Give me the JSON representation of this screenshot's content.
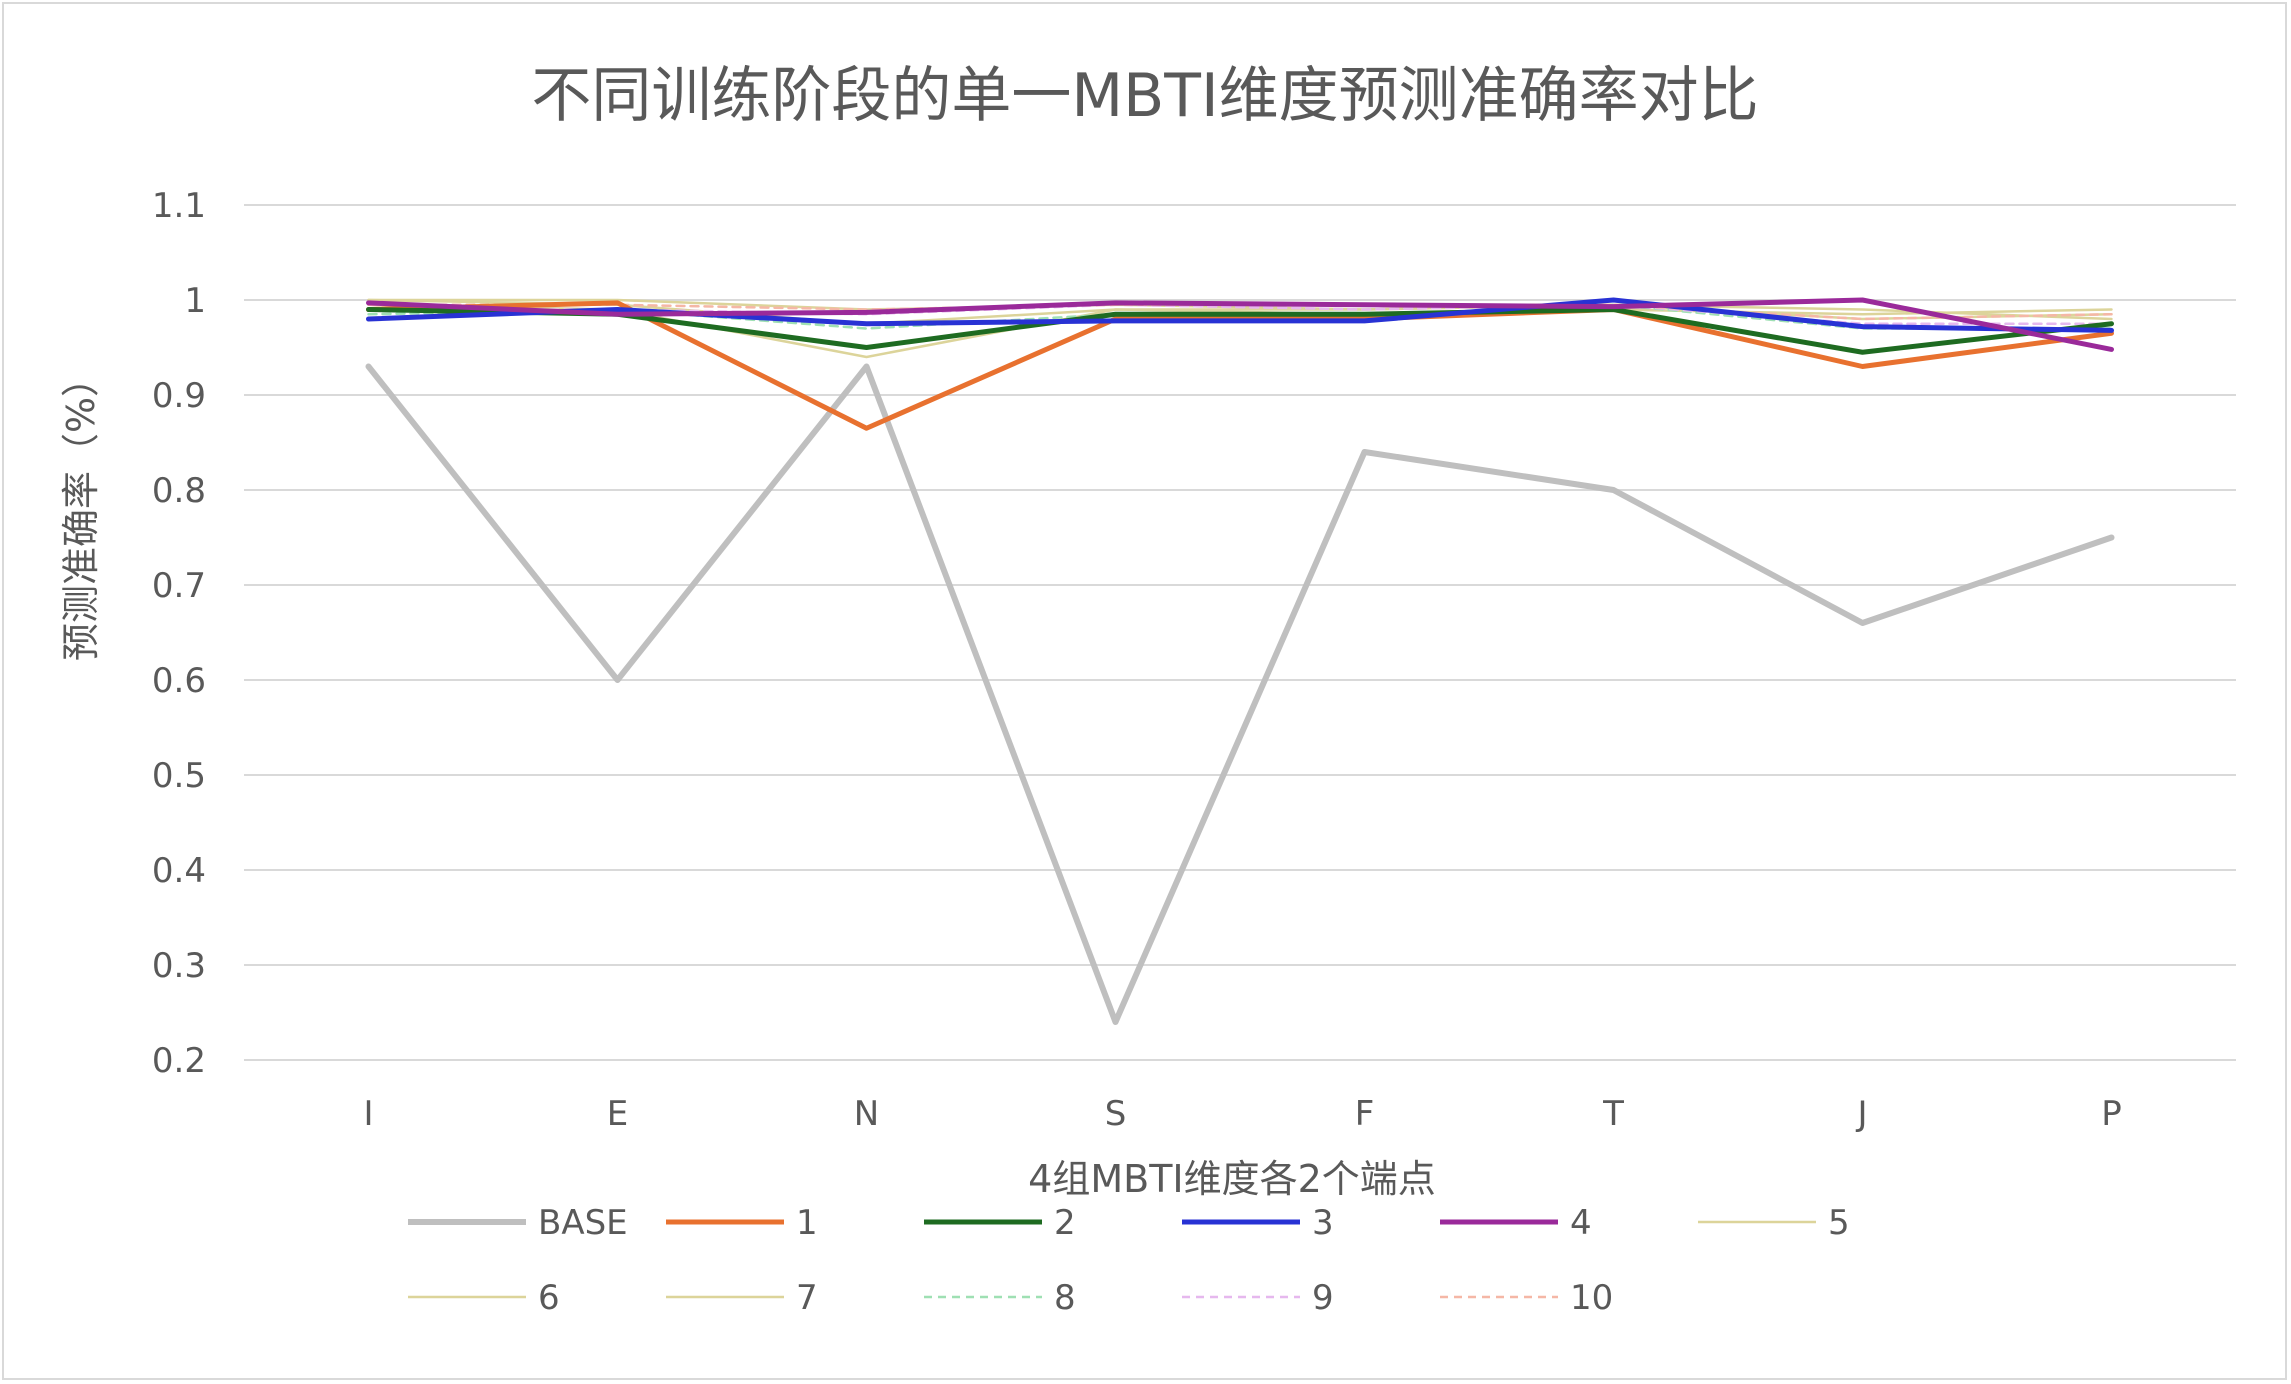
{
  "chart_data": {
    "type": "line",
    "title": "不同训练阶段的单一MBTI维度预测准确率对比",
    "xlabel": "4组MBTI维度各2个端点",
    "ylabel": "预测准确率（%）",
    "ylim": [
      0.2,
      1.1
    ],
    "ytick_step": 0.1,
    "yticks": [
      "0.2",
      "0.3",
      "0.4",
      "0.5",
      "0.6",
      "0.7",
      "0.8",
      "0.9",
      "1",
      "1.1"
    ],
    "grid": true,
    "legend_position": "bottom",
    "categories": [
      "I",
      "E",
      "N",
      "S",
      "F",
      "T",
      "J",
      "P"
    ],
    "series": [
      {
        "name": "BASE",
        "color": "#bfbfbf",
        "style": "thick",
        "values": [
          0.93,
          0.6,
          0.93,
          0.24,
          0.84,
          0.8,
          0.66,
          0.75
        ]
      },
      {
        "name": "1",
        "color": "#e8712f",
        "style": "bold",
        "values": [
          0.99,
          0.997,
          0.865,
          0.98,
          0.98,
          0.99,
          0.93,
          0.965
        ]
      },
      {
        "name": "2",
        "color": "#1e6b21",
        "style": "bold",
        "values": [
          0.99,
          0.985,
          0.95,
          0.985,
          0.985,
          0.99,
          0.945,
          0.975
        ]
      },
      {
        "name": "3",
        "color": "#2832d4",
        "style": "bold",
        "values": [
          0.98,
          0.99,
          0.975,
          0.978,
          0.978,
          1.0,
          0.972,
          0.968
        ]
      },
      {
        "name": "4",
        "color": "#9a2a9a",
        "style": "bold",
        "values": [
          0.997,
          0.985,
          0.987,
          0.997,
          0.995,
          0.993,
          1.0,
          0.948
        ]
      },
      {
        "name": "5",
        "color": "#dcd49a",
        "style": "thin",
        "values": [
          1.0,
          0.995,
          0.975,
          0.99,
          0.99,
          0.995,
          0.98,
          0.985
        ]
      },
      {
        "name": "6",
        "color": "#dcd49a",
        "style": "thin",
        "values": [
          0.995,
          0.99,
          0.94,
          0.99,
          0.985,
          0.99,
          0.985,
          0.99
        ]
      },
      {
        "name": "7",
        "color": "#dcd49a",
        "style": "thin",
        "values": [
          1.0,
          1.0,
          0.99,
          0.995,
          0.99,
          0.995,
          0.99,
          0.98
        ]
      },
      {
        "name": "8",
        "color": "#9fe0b3",
        "style": "dashed",
        "values": [
          0.985,
          0.99,
          0.97,
          0.985,
          0.98,
          0.995,
          0.97,
          0.97
        ]
      },
      {
        "name": "9",
        "color": "#e6b8ee",
        "style": "dashed",
        "values": [
          0.99,
          0.99,
          0.985,
          0.995,
          0.99,
          0.995,
          0.975,
          0.975
        ]
      },
      {
        "name": "10",
        "color": "#f5b7a6",
        "style": "dashed",
        "values": [
          0.995,
          0.995,
          0.99,
          0.995,
          0.995,
          0.995,
          0.98,
          0.985
        ]
      }
    ]
  }
}
